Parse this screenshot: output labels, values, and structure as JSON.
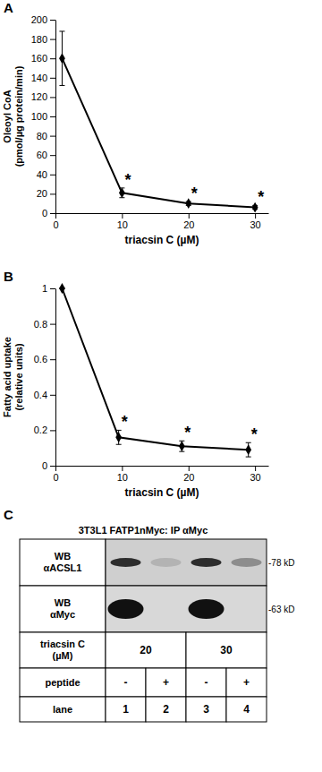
{
  "chart_data": [
    {
      "type": "line",
      "panel": "A",
      "y_label": "Oleoyl CoA\n(pmol/µg protein/min)",
      "x_label": "triacsin C (µM)",
      "x": [
        1,
        10,
        20,
        30
      ],
      "values": [
        160,
        21,
        10,
        6
      ],
      "errors": [
        28,
        5,
        2,
        2
      ],
      "significance": [
        null,
        "*",
        "*",
        "*"
      ],
      "color": "#000000",
      "marker": "diamond",
      "line_style": "solid",
      "grid": false,
      "xlim": [
        0,
        32
      ],
      "xticks": [
        0,
        10,
        20,
        30
      ],
      "ylim": [
        0,
        200
      ],
      "yticks": [
        0,
        20,
        40,
        60,
        80,
        100,
        120,
        140,
        160,
        180,
        200
      ]
    },
    {
      "type": "line",
      "panel": "B",
      "y_label": "Fatty acid uptake\n(relative units)",
      "x_label": "triacsin C (µM)",
      "x": [
        1,
        9.5,
        19,
        29
      ],
      "values": [
        1,
        0.16,
        0.11,
        0.09
      ],
      "errors": [
        0,
        0.04,
        0.03,
        0.04
      ],
      "significance": [
        null,
        "*",
        "*",
        "*"
      ],
      "color": "#000000",
      "marker": "diamond",
      "line_style": "solid",
      "grid": false,
      "xlim": [
        0,
        32
      ],
      "xticks": [
        0,
        10,
        20,
        30
      ],
      "ylim": [
        0,
        1
      ],
      "yticks": [
        0,
        0.2,
        0.4,
        0.6,
        0.8,
        1
      ]
    }
  ],
  "blot": {
    "panel": "C",
    "title": "3T3L1 FATP1nMyc: IP αMyc",
    "rows": [
      {
        "label": "WB\nαACSL1",
        "size_label": "-78 kD",
        "intensity": [
          0.85,
          0.15,
          0.85,
          0.35
        ]
      },
      {
        "label": "WB\nαMyc",
        "size_label": "-63 kD",
        "intensity": [
          1,
          0,
          1,
          0
        ]
      }
    ],
    "conditions": [
      {
        "label": "triacsin C\n(µM)",
        "cells": [
          "20",
          "30"
        ]
      },
      {
        "label": "peptide",
        "cells": [
          "-",
          "+",
          "-",
          "+"
        ]
      },
      {
        "label": "lane",
        "cells": [
          1,
          2,
          3,
          4
        ]
      }
    ]
  }
}
